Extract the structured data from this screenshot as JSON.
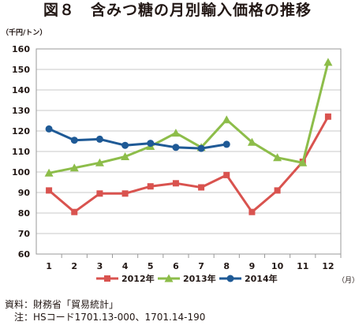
{
  "title": "図８　含みつ糖の月別輸入価格の推移",
  "chart_data": {
    "type": "line",
    "unit_label": "（千円/トン）",
    "x_unit_label": "（月）",
    "categories": [
      "1",
      "2",
      "3",
      "4",
      "5",
      "6",
      "7",
      "8",
      "9",
      "10",
      "11",
      "12"
    ],
    "ylim": [
      60,
      160
    ],
    "yticks": [
      60,
      70,
      80,
      90,
      100,
      110,
      120,
      130,
      140,
      150,
      160
    ],
    "grid": true,
    "legend_position": "bottom",
    "series": [
      {
        "name": "2012年",
        "color": "#d9534f",
        "marker": "square",
        "values": [
          91,
          80.5,
          89.5,
          89.5,
          93,
          94.5,
          92.5,
          98.5,
          80.5,
          91,
          105,
          127
        ]
      },
      {
        "name": "2013年",
        "color": "#8dbd4a",
        "marker": "triangle",
        "values": [
          99.5,
          102,
          104.5,
          107.5,
          112.5,
          119,
          112,
          125.5,
          114.5,
          107,
          104.5,
          153.5
        ]
      },
      {
        "name": "2014年",
        "color": "#1f5a96",
        "marker": "circle",
        "values": [
          121,
          115.5,
          116,
          113,
          114,
          112,
          111.5,
          113.5,
          null,
          null,
          null,
          null
        ]
      }
    ]
  },
  "footer": {
    "source": "資料：財務省「貿易統計」",
    "note": "　注：HSコード1701.13-000、1701.14-190"
  }
}
